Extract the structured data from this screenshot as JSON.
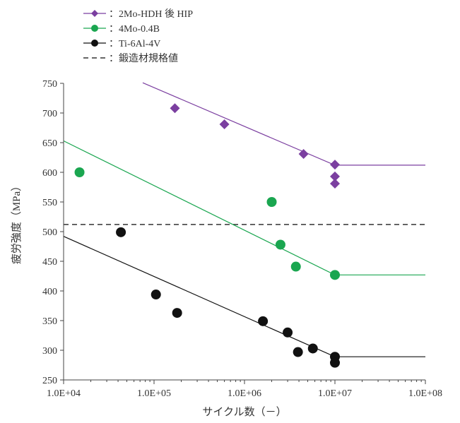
{
  "chart_data": {
    "type": "scatter",
    "title": "",
    "xlabel": "サイクル数（－）",
    "ylabel": "疲労強度（MPa）",
    "x_scale": "log",
    "xlim": [
      10000,
      100000000
    ],
    "ylim": [
      250,
      750
    ],
    "x_ticks": [
      {
        "value": 10000,
        "label": "1.0E+04"
      },
      {
        "value": 100000,
        "label": "1.0E+05"
      },
      {
        "value": 1000000,
        "label": "1.0E+06"
      },
      {
        "value": 10000000,
        "label": "1.0E+07"
      },
      {
        "value": 100000000,
        "label": "1.0E+08"
      }
    ],
    "y_ticks": [
      {
        "value": 250,
        "label": "250"
      },
      {
        "value": 300,
        "label": "300"
      },
      {
        "value": 350,
        "label": "350"
      },
      {
        "value": 400,
        "label": "400"
      },
      {
        "value": 450,
        "label": "450"
      },
      {
        "value": 500,
        "label": "500"
      },
      {
        "value": 550,
        "label": "550"
      },
      {
        "value": 600,
        "label": "600"
      },
      {
        "value": 650,
        "label": "650"
      },
      {
        "value": 700,
        "label": "700"
      },
      {
        "value": 750,
        "label": "750"
      }
    ],
    "grid": false,
    "legend_position": "top-left",
    "series": [
      {
        "name": "2Mo-HDH 後 HIP",
        "legend_label": "：2Mo-HDH 後 HIP",
        "marker": "diamond",
        "color": "#7b3fa0",
        "x": [
          170000,
          600000,
          4500000,
          10000000,
          10000000,
          10000000
        ],
        "y": [
          708,
          681,
          631,
          613,
          593,
          581
        ],
        "fit": [
          [
            75000,
            751
          ],
          [
            10000000,
            612
          ],
          [
            100000000,
            612
          ]
        ]
      },
      {
        "name": "4Mo-0.4B",
        "legend_label": "：4Mo-0.4B",
        "marker": "circle",
        "color": "#1aa650",
        "x": [
          15000,
          2000000,
          2500000,
          3700000,
          10000000
        ],
        "y": [
          600,
          550,
          478,
          441,
          427
        ],
        "fit": [
          [
            10000,
            653
          ],
          [
            10000000,
            427
          ],
          [
            100000000,
            427
          ]
        ]
      },
      {
        "name": "Ti-6Al-4V",
        "legend_label": "：Ti-6Al-4V",
        "marker": "circle",
        "color": "#111111",
        "x": [
          43000,
          105000,
          180000,
          1600000,
          3000000,
          3900000,
          5700000,
          10000000,
          10000000
        ],
        "y": [
          499,
          394,
          363,
          349,
          330,
          297,
          303,
          289,
          279
        ],
        "fit": [
          [
            10000,
            492
          ],
          [
            10000000,
            289
          ],
          [
            100000000,
            289
          ]
        ]
      }
    ],
    "reference_lines": [
      {
        "name": "鍛造材規格値",
        "legend_label": "：鍛造材規格値",
        "y": 512,
        "style": "dashed",
        "color": "#333333"
      }
    ]
  }
}
